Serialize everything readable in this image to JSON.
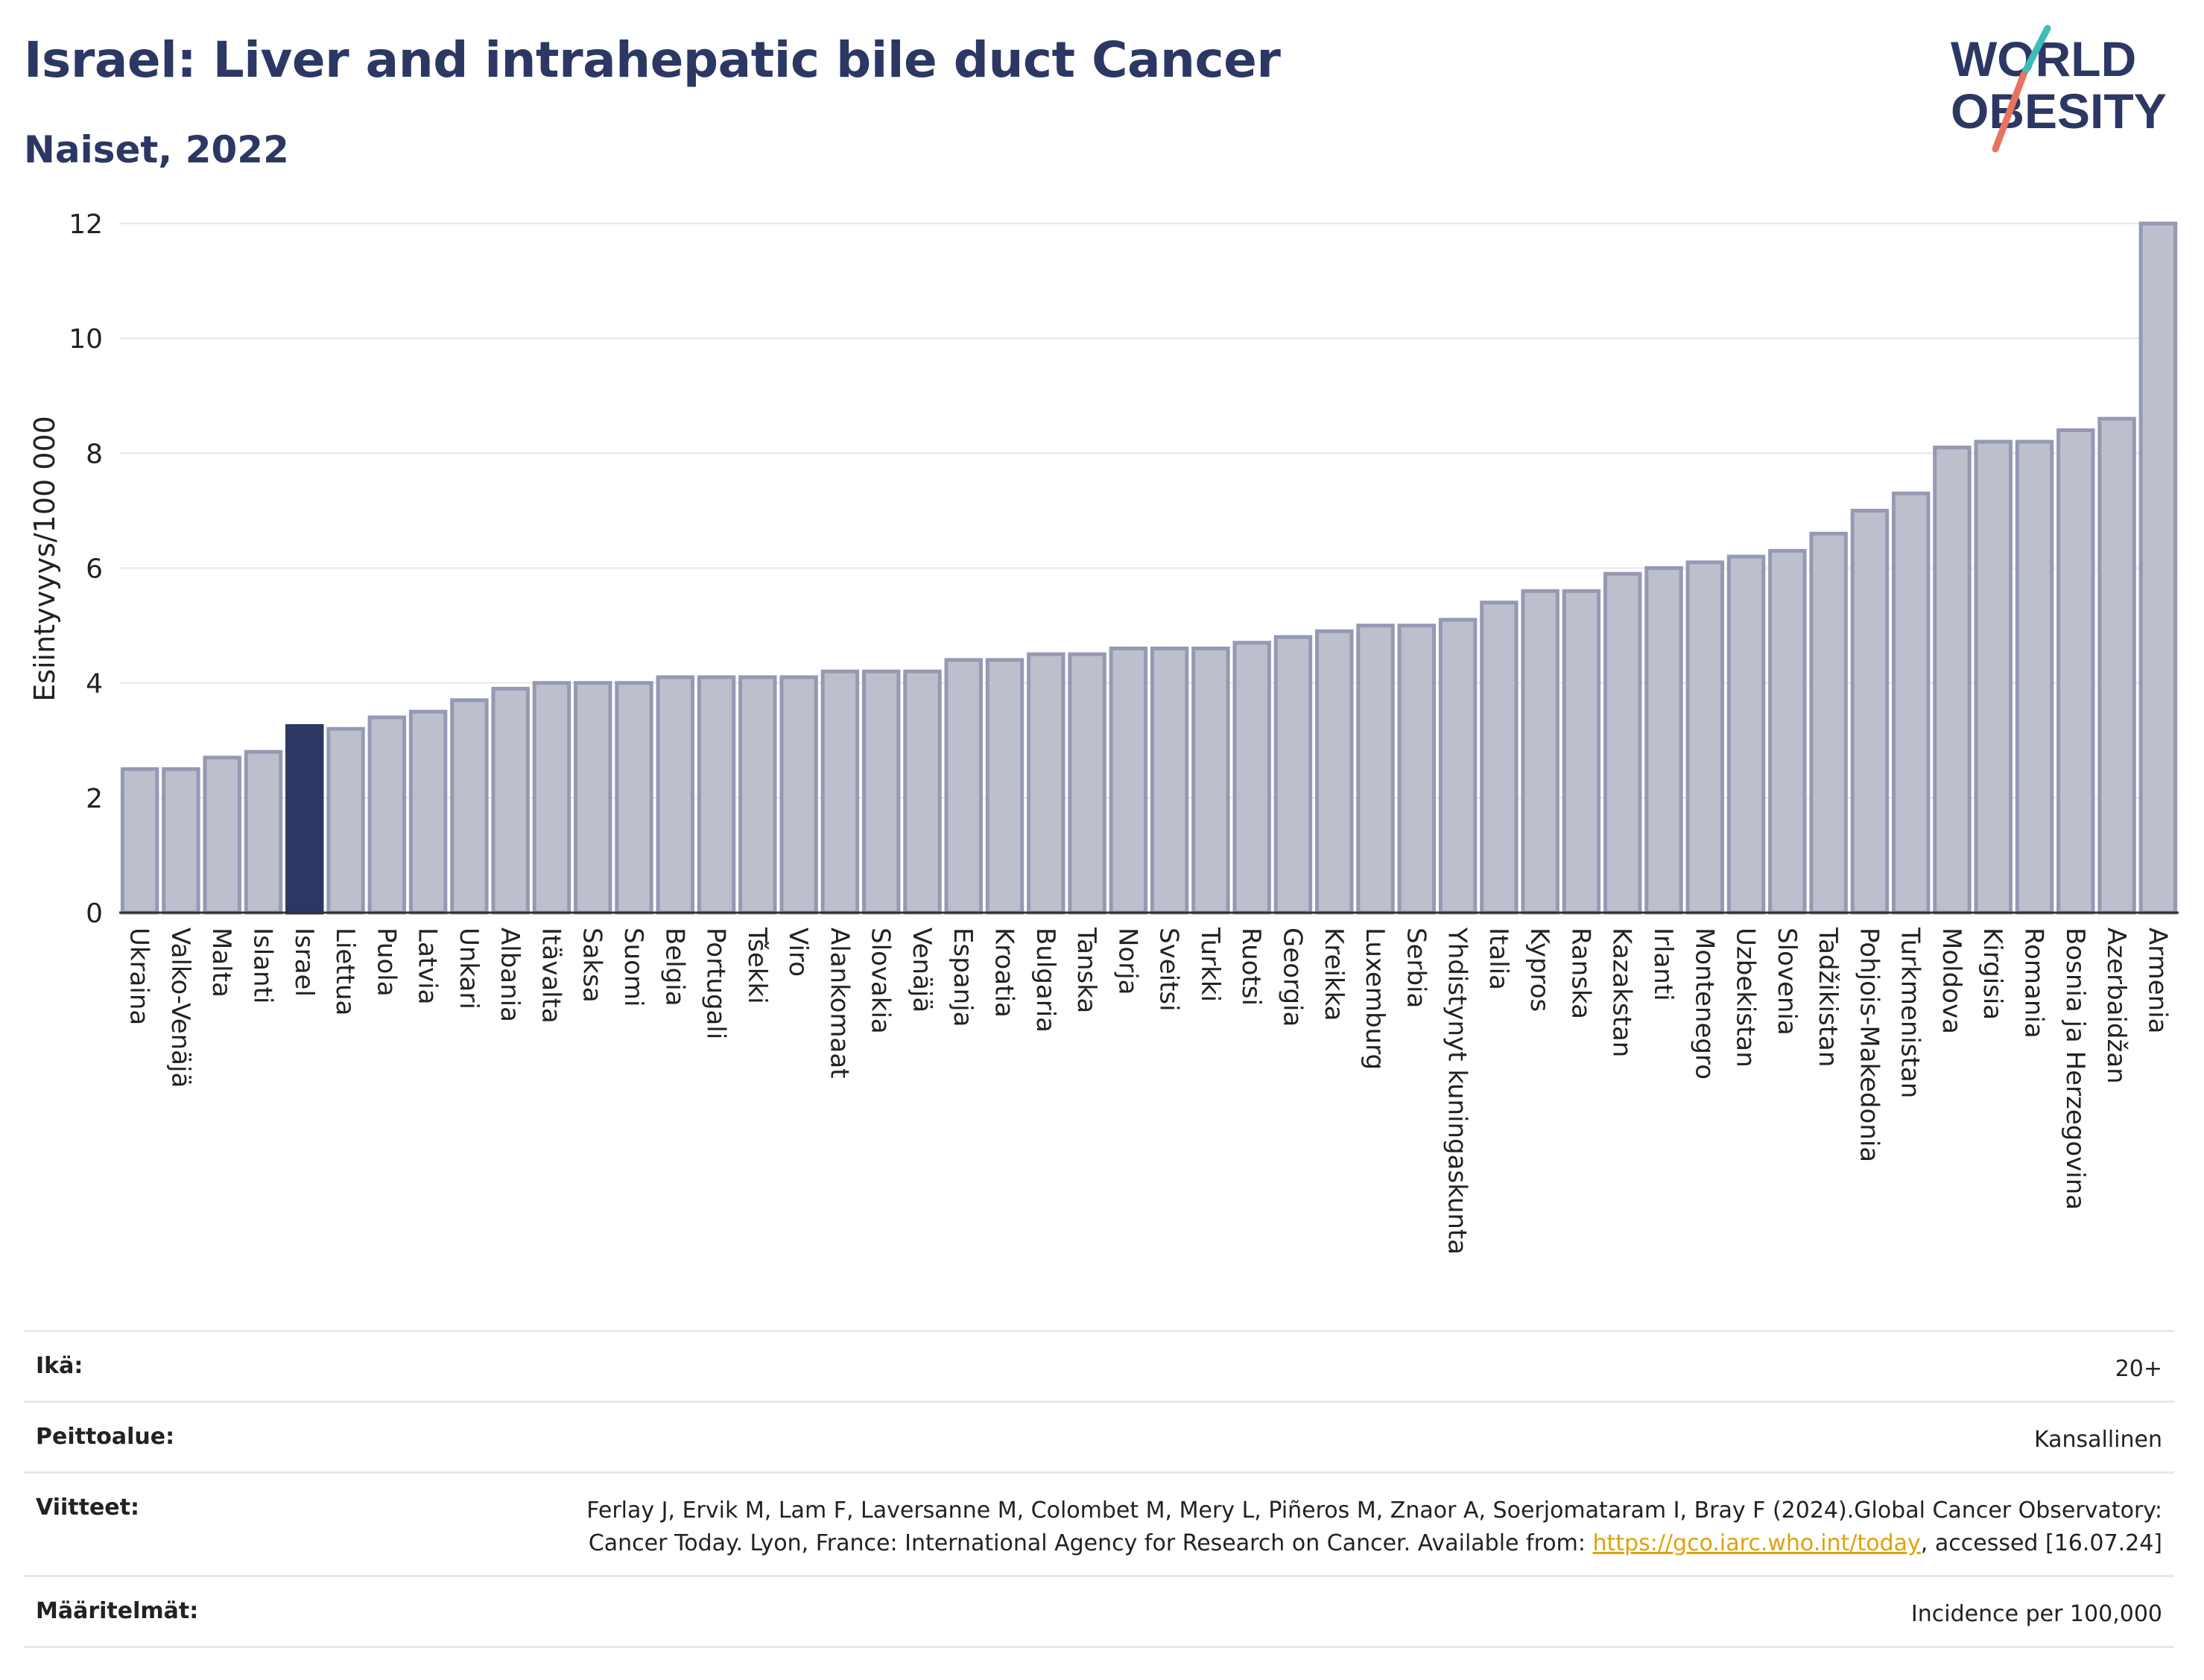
{
  "header": {
    "title": "Israel: Liver and intrahepatic bile duct Cancer",
    "subtitle": "Naiset, 2022"
  },
  "logo": {
    "line1": "WORLD",
    "line2": "OBESITY",
    "text_color": "#2c3764",
    "slash_colors": [
      "#3dbdb5",
      "#e8735f"
    ]
  },
  "colors": {
    "bar_fill": "#bcc0cc",
    "bar_stroke": "#9599b3",
    "highlight": "#2c3764",
    "grid": "#e6e7ec"
  },
  "chart_data": {
    "type": "bar",
    "ylabel": "Esiintyvyys/100 000",
    "ylim": [
      0,
      12
    ],
    "yticks": [
      0,
      2,
      4,
      6,
      8,
      10,
      12
    ],
    "grid": true,
    "highlight": "Israel",
    "categories": [
      "Ukraina",
      "Valko-Venäjä",
      "Malta",
      "Islanti",
      "Israel",
      "Liettua",
      "Puola",
      "Latvia",
      "Unkari",
      "Albania",
      "Itävalta",
      "Saksa",
      "Suomi",
      "Belgia",
      "Portugali",
      "Tšekki",
      "Viro",
      "Alankomaat",
      "Slovakia",
      "Venäjä",
      "Espanja",
      "Kroatia",
      "Bulgaria",
      "Tanska",
      "Norja",
      "Sveitsi",
      "Turkki",
      "Ruotsi",
      "Georgia",
      "Kreikka",
      "Luxemburg",
      "Serbia",
      "Yhdistynyt kuningaskunta",
      "Italia",
      "Kypros",
      "Ranska",
      "Kazakstan",
      "Irlanti",
      "Montenegro",
      "Uzbekistan",
      "Slovenia",
      "Tadžikistan",
      "Pohjois-Makedonia",
      "Turkmenistan",
      "Moldova",
      "Kirgisia",
      "Romania",
      "Bosnia ja Herzegovina",
      "Azerbaidžan",
      "Armenia"
    ],
    "values": [
      2.5,
      2.5,
      2.7,
      2.8,
      3.25,
      3.2,
      3.4,
      3.5,
      3.7,
      3.9,
      4.0,
      4.0,
      4.0,
      4.1,
      4.1,
      4.1,
      4.1,
      4.2,
      4.2,
      4.2,
      4.4,
      4.4,
      4.5,
      4.5,
      4.6,
      4.6,
      4.6,
      4.7,
      4.8,
      4.9,
      5.0,
      5.0,
      5.1,
      5.4,
      5.6,
      5.6,
      5.9,
      6.0,
      6.1,
      6.2,
      6.3,
      6.6,
      7.0,
      7.3,
      8.1,
      8.2,
      8.2,
      8.4,
      8.6,
      12.0
    ]
  },
  "info": [
    {
      "label": "Ikä:",
      "value": "20+"
    },
    {
      "label": "Peittoalue:",
      "value": "Kansallinen"
    },
    {
      "label": "Viitteet:",
      "value_before_link": "Ferlay J, Ervik M, Lam F, Laversanne M, Colombet M, Mery L, Piñeros M, Znaor A, Soerjomataram I, Bray F (2024).Global Cancer Observatory: Cancer Today. Lyon, France: International Agency for Research on Cancer. Available from: ",
      "link": "https://gco.iarc.who.int/today",
      "value_after_link": ", accessed [16.07.24]"
    },
    {
      "label": "Määritelmät:",
      "value": "Incidence per 100,000"
    }
  ]
}
